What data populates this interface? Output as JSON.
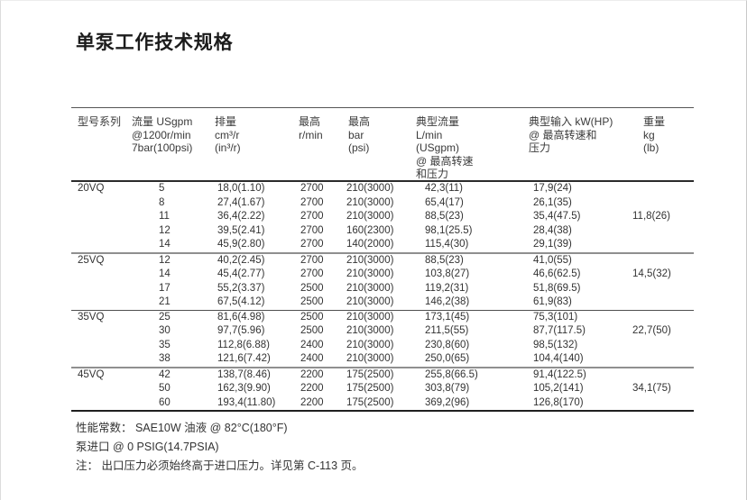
{
  "page": {
    "title": "单泵工作技术规格"
  },
  "colors": {
    "background": "#ffffff",
    "text": "#2f2f2f",
    "rule_dark": "#2b2b2b",
    "rule_gray": "#8f8f8f",
    "scan_edge": "#c9c9c9"
  },
  "table": {
    "columns": [
      {
        "id": "series",
        "lines": [
          "型号系列"
        ]
      },
      {
        "id": "flow",
        "lines": [
          "流量 USgpm",
          "@1200r/min",
          "7bar(100psi)"
        ]
      },
      {
        "id": "displacement",
        "lines": [
          "排量",
          "cm³/r",
          "(in³/r)"
        ]
      },
      {
        "id": "max-speed",
        "lines": [
          "最高",
          "r/min"
        ]
      },
      {
        "id": "max-pressure",
        "lines": [
          "最高",
          "bar",
          "(psi)"
        ]
      },
      {
        "id": "typical-flow",
        "lines": [
          "典型流量",
          "L/min",
          "(USgpm)",
          "@ 最高转速",
          "和压力"
        ]
      },
      {
        "id": "typical-input",
        "lines": [
          "典型输入 kW(HP)",
          "@ 最高转速和",
          "压力"
        ]
      },
      {
        "id": "weight",
        "lines": [
          "重量",
          "kg",
          "(lb)"
        ]
      }
    ],
    "sections": [
      {
        "series": "20VQ",
        "weight": "11,8(26)",
        "separator": "none",
        "rows": [
          [
            "5",
            "18,0(1.10)",
            "2700",
            "210(3000)",
            "42,3(11)",
            "17,9(24)"
          ],
          [
            "8",
            "27,4(1.67)",
            "2700",
            "210(3000)",
            "65,4(17)",
            "26,1(35)"
          ],
          [
            "11",
            "36,4(2.22)",
            "2700",
            "210(3000)",
            "88,5(23)",
            "35,4(47.5)"
          ],
          [
            "12",
            "39,5(2.41)",
            "2700",
            "160(2300)",
            "98,1(25.5)",
            "28,4(38)"
          ],
          [
            "14",
            "45,9(2.80)",
            "2700",
            "140(2000)",
            "115,4(30)",
            "29,1(39)"
          ]
        ]
      },
      {
        "series": "25VQ",
        "weight": "14,5(32)",
        "separator": "gray",
        "rows": [
          [
            "12",
            "40,2(2.45)",
            "2700",
            "210(3000)",
            "88,5(23)",
            "41,0(55)"
          ],
          [
            "14",
            "45,4(2.77)",
            "2700",
            "210(3000)",
            "103,8(27)",
            "46,6(62.5)"
          ],
          [
            "17",
            "55,2(3.37)",
            "2500",
            "210(3000)",
            "119,2(31)",
            "51,8(69.5)"
          ],
          [
            "21",
            "67,5(4.12)",
            "2500",
            "210(3000)",
            "146,2(38)",
            "61,9(83)"
          ]
        ]
      },
      {
        "series": "35VQ",
        "weight": "22,7(50)",
        "separator": "dark",
        "rows": [
          [
            "25",
            "81,6(4.98)",
            "2500",
            "210(3000)",
            "173,1(45)",
            "75,3(101)"
          ],
          [
            "30",
            "97,7(5.96)",
            "2500",
            "210(3000)",
            "211,5(55)",
            "87,7(117.5)"
          ],
          [
            "35",
            "112,8(6.88)",
            "2400",
            "210(3000)",
            "230,8(60)",
            "98,5(132)"
          ],
          [
            "38",
            "121,6(7.42)",
            "2400",
            "210(3000)",
            "250,0(65)",
            "104,4(140)"
          ]
        ]
      },
      {
        "series": "45VQ",
        "weight": "34,1(75)",
        "separator": "gray",
        "rows": [
          [
            "42",
            "138,7(8.46)",
            "2200",
            "175(2500)",
            "255,8(66.5)",
            "91,4(122.5)"
          ],
          [
            "50",
            "162,3(9.90)",
            "2200",
            "175(2500)",
            "303,8(79)",
            "105,2(141)"
          ],
          [
            "60",
            "193,4(11.80)",
            "2200",
            "175(2500)",
            "369,2(96)",
            "126,8(170)"
          ]
        ]
      }
    ]
  },
  "footer": {
    "notes": [
      "性能常数： SAE10W 油液 @ 82°C(180°F)",
      "泵进口 @ 0 PSIG(14.7PSIA)",
      "注： 出口压力必须始终高于进口压力。详见第 C-113 页。"
    ]
  }
}
